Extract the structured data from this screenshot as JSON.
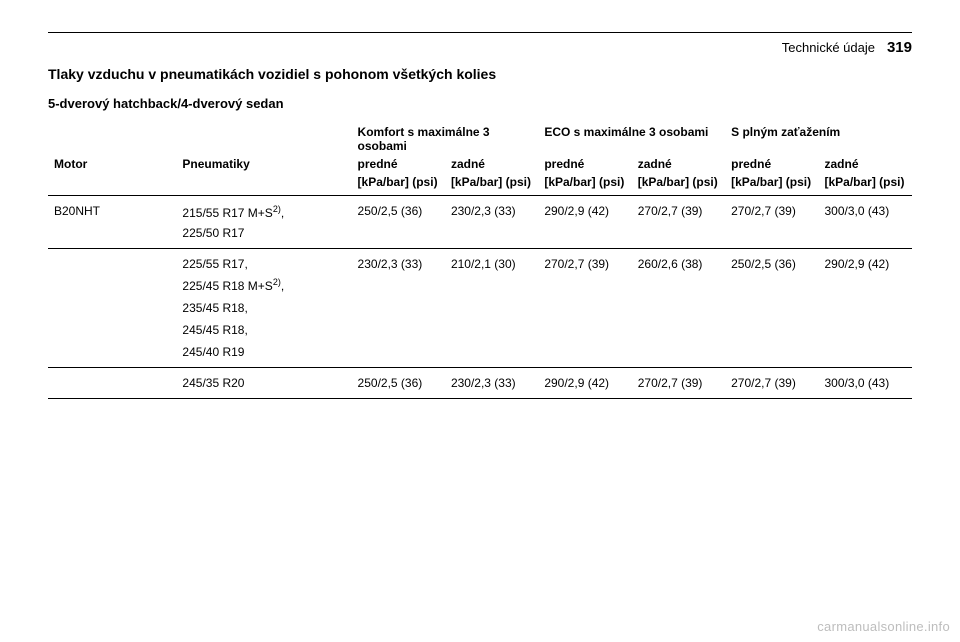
{
  "header": {
    "section": "Technické údaje",
    "page": "319"
  },
  "titles": {
    "main": "Tlaky vzduchu v pneumatikách vozidiel s pohonom všetkých kolies",
    "sub": "5-dverový hatchback/4-dverový sedan"
  },
  "columns": {
    "motor": "Motor",
    "tires": "Pneumatiky",
    "group1": "Komfort s maximálne 3 osobami",
    "group2": "ECO s maximálne 3 osobami",
    "group3": "S plným zaťažením",
    "front": "predné",
    "rear": "zadné",
    "unit": "[kPa/bar] (psi)"
  },
  "engine": "B20NHT",
  "rows": [
    {
      "tire": "215/55 R17 M+S",
      "sup": "2)",
      "vals": [
        "250/2,5 (36)",
        "230/2,3 (33)",
        "290/2,9 (42)",
        "270/2,7 (39)",
        "270/2,7 (39)",
        "300/3,0 (43)"
      ]
    },
    {
      "tire": "225/50 R17"
    },
    {
      "tire": "225/55 R17,",
      "vals": [
        "230/2,3 (33)",
        "210/2,1 (30)",
        "270/2,7 (39)",
        "260/2,6 (38)",
        "250/2,5 (36)",
        "290/2,9 (42)"
      ]
    },
    {
      "tire": "225/45 R18 M+S",
      "sup": "2)",
      "tail": ","
    },
    {
      "tire": "235/45 R18,"
    },
    {
      "tire": "245/45 R18,"
    },
    {
      "tire": "245/40 R19"
    },
    {
      "tire": "245/35 R20",
      "vals": [
        "250/2,5 (36)",
        "230/2,3 (33)",
        "290/2,9 (42)",
        "270/2,7 (39)",
        "270/2,7 (39)",
        "300/3,0 (43)"
      ]
    }
  ],
  "watermark": "carmanualsonline.info"
}
